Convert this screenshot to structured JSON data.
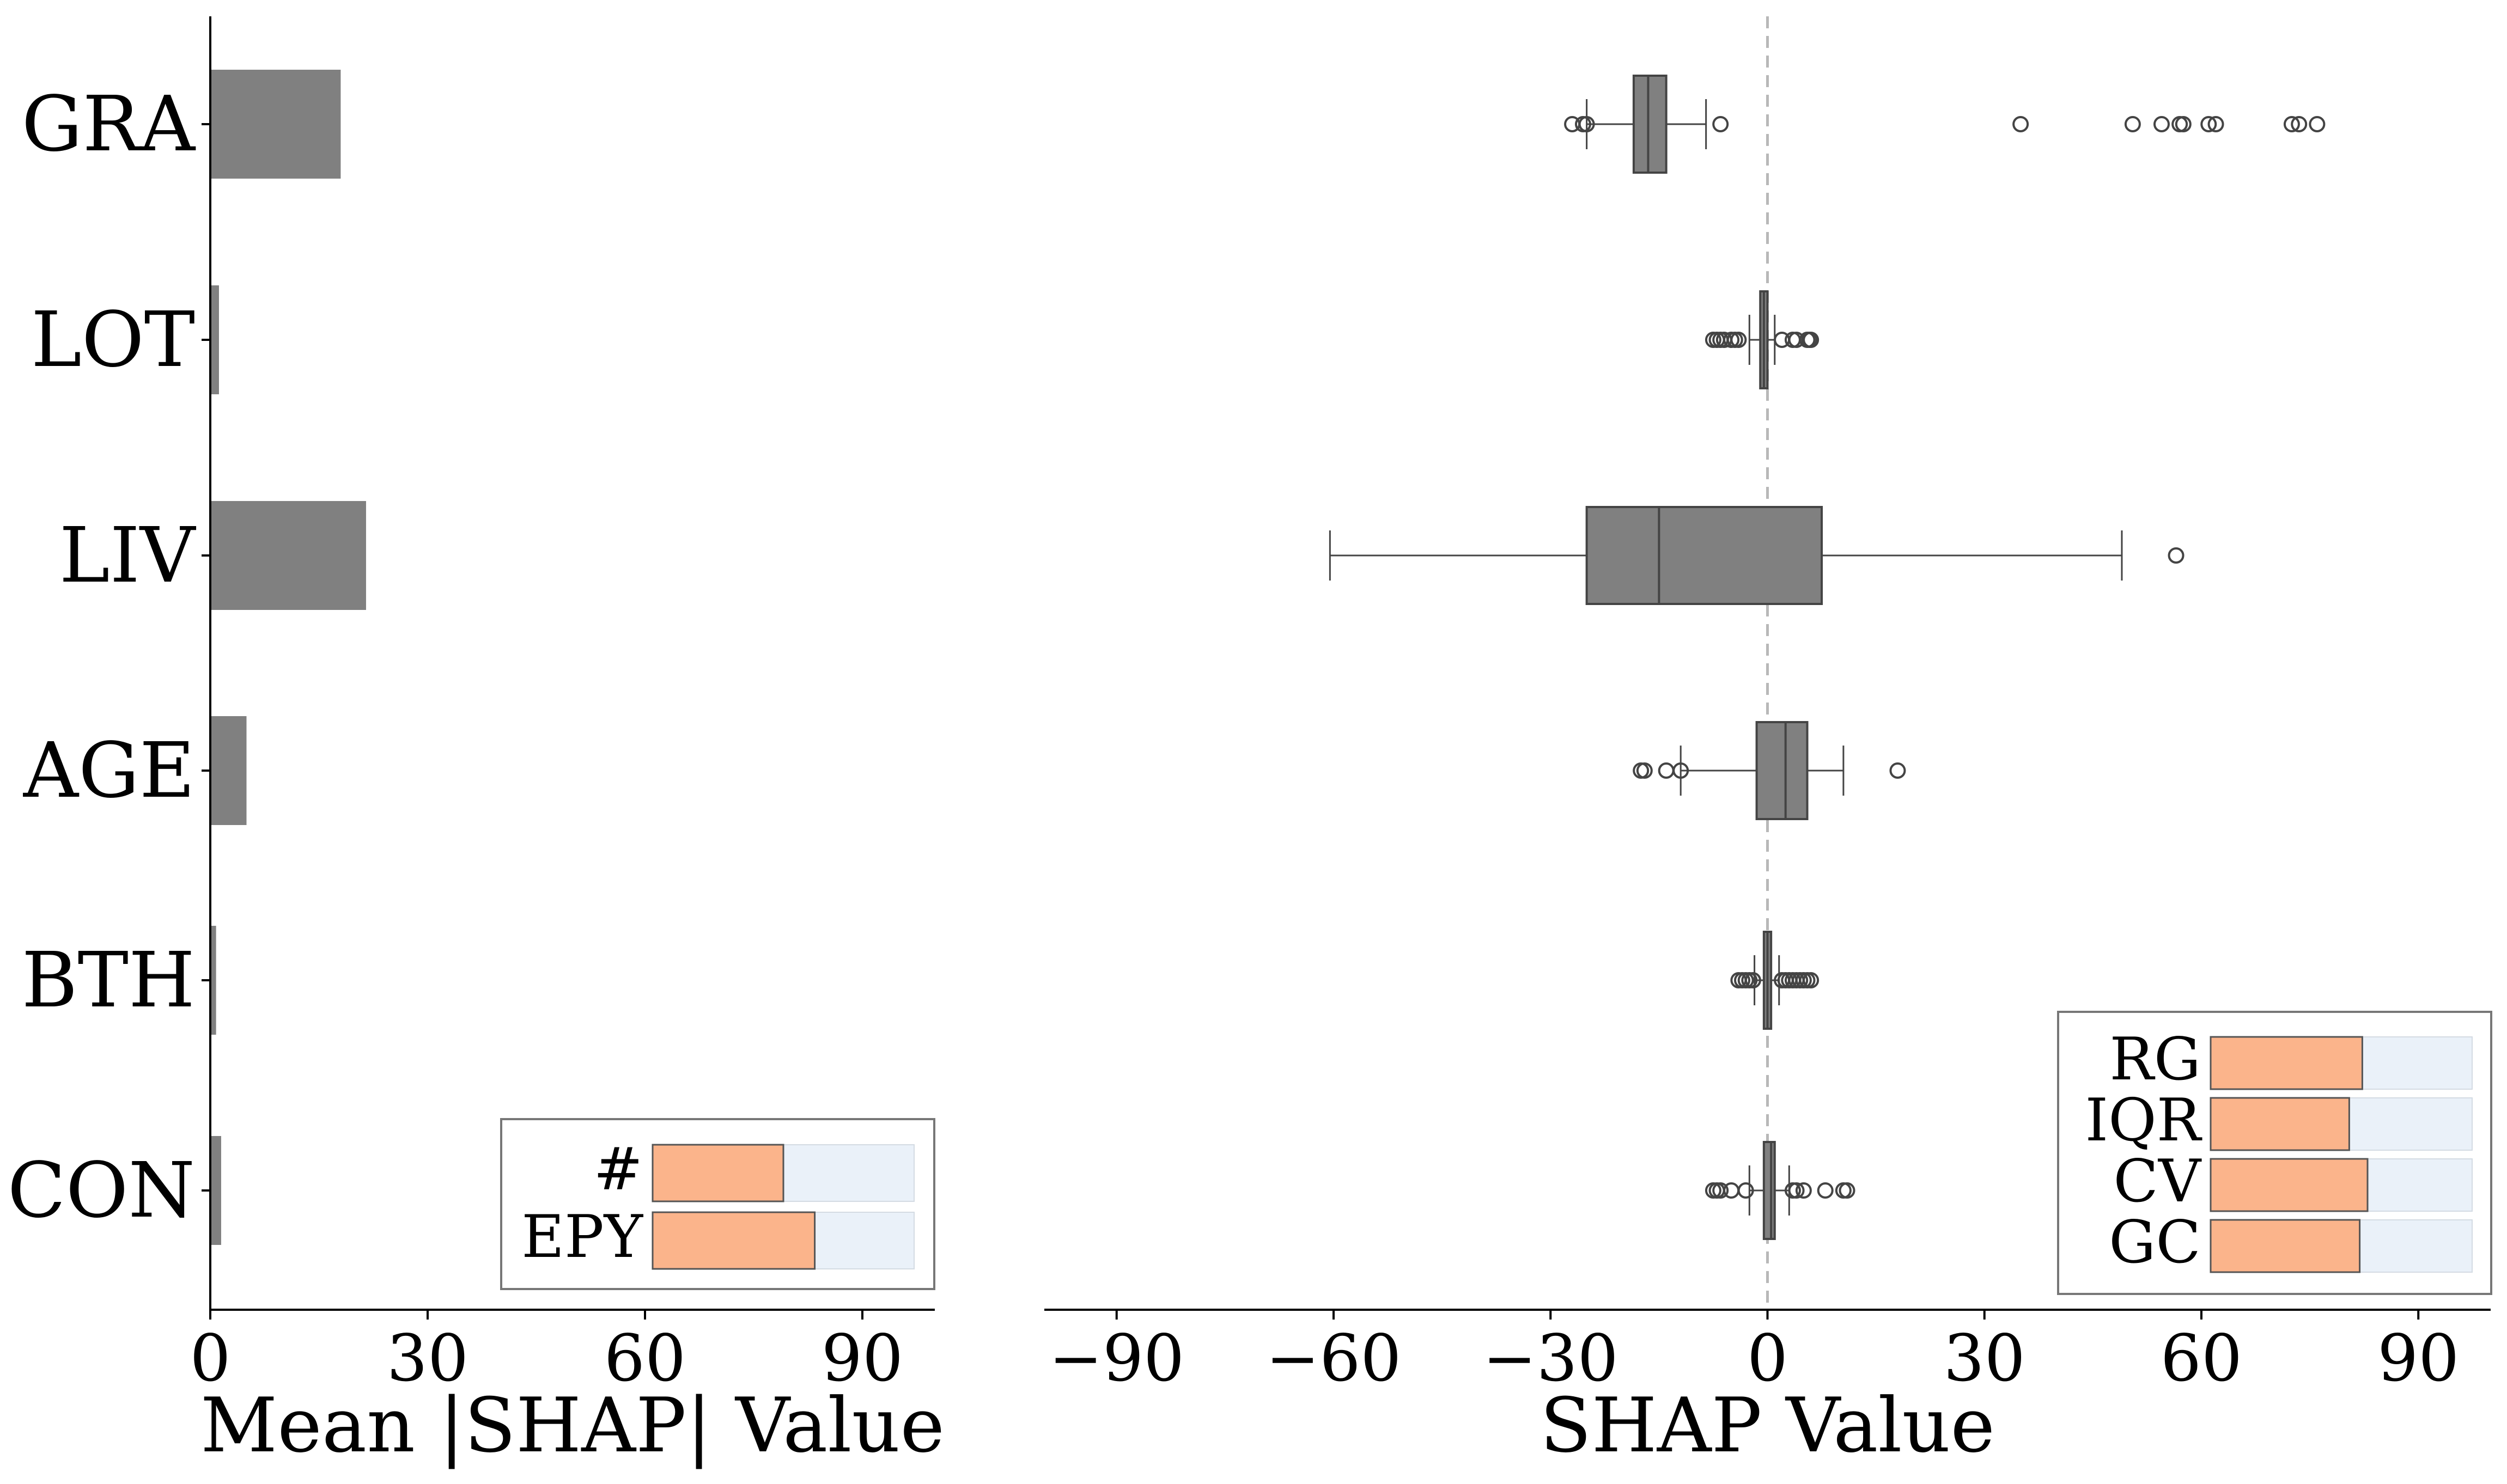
{
  "chart_data": [
    {
      "type": "bar",
      "orientation": "horizontal",
      "title": "",
      "xlabel": "Mean |SHAP| Value",
      "ylabel": "",
      "xlim": [
        0,
        100
      ],
      "xticks": [
        0,
        30,
        60,
        90
      ],
      "xtick_labels": [
        "0",
        "30",
        "60",
        "90"
      ],
      "categories": [
        "GRA",
        "LOT",
        "LIV",
        "AGE",
        "BTH",
        "CON"
      ],
      "values": [
        18,
        1.2,
        21.5,
        5,
        0.8,
        1.5
      ],
      "bar_color": "#808080",
      "legend": {
        "position": "bottom-right",
        "items": [
          {
            "label": "#",
            "value": 0.5
          },
          {
            "label": "EPY",
            "value": 0.62
          }
        ],
        "fill_color": "#fbb48b",
        "track_color": "#eaf1f9"
      }
    },
    {
      "type": "box",
      "orientation": "horizontal",
      "title": "",
      "xlabel": "SHAP Value",
      "ylabel": "",
      "xlim": [
        -100,
        100
      ],
      "xticks": [
        -90,
        -60,
        -30,
        0,
        30,
        60,
        90
      ],
      "xtick_labels": [
        "−90",
        "−60",
        "−30",
        "0",
        "30",
        "60",
        "90"
      ],
      "reference_line": 0,
      "categories": [
        "GRA",
        "LOT",
        "LIV",
        "AGE",
        "BTH",
        "CON"
      ],
      "boxes": [
        {
          "whisker_low": -25,
          "q1": -18.5,
          "median": -16.5,
          "q3": -14,
          "whisker_high": -8.5,
          "outliers": [
            -27,
            -25.5,
            -25,
            -6.5,
            35,
            50.5,
            54.5,
            57,
            57.5,
            61,
            62,
            72.5,
            73.5,
            76
          ]
        },
        {
          "whisker_low": -2.5,
          "q1": -1,
          "median": -0.5,
          "q3": 0,
          "whisker_high": 1,
          "outliers": [
            -7.5,
            -7,
            -6.5,
            -6,
            -5,
            -4.5,
            -4,
            2,
            3.5,
            4,
            5.5,
            5.8,
            6
          ]
        },
        {
          "whisker_low": -60.5,
          "q1": -25,
          "median": -15,
          "q3": 7.5,
          "whisker_high": 49,
          "outliers": [
            56.5
          ]
        },
        {
          "whisker_low": -12,
          "q1": -1.5,
          "median": 2.5,
          "q3": 5.5,
          "whisker_high": 10.5,
          "outliers": [
            -17.5,
            -17,
            -14,
            -12,
            18
          ]
        },
        {
          "whisker_low": -1.8,
          "q1": -0.5,
          "median": 0,
          "q3": 0.5,
          "whisker_high": 1.6,
          "outliers": [
            -4,
            -3.5,
            -3,
            -2.5,
            -2,
            2,
            2.5,
            3,
            3.5,
            4,
            4.5,
            5,
            5.5,
            6
          ]
        },
        {
          "whisker_low": -2.5,
          "q1": -0.5,
          "median": 0.5,
          "q3": 1,
          "whisker_high": 3,
          "outliers": [
            -7.5,
            -7,
            -6.5,
            -5,
            -3,
            3.5,
            4,
            5,
            8,
            10.5,
            11
          ]
        }
      ],
      "box_color": "#808080",
      "legend": {
        "position": "bottom-right",
        "items": [
          {
            "label": "RG",
            "value": 0.58
          },
          {
            "label": "IQR",
            "value": 0.53
          },
          {
            "label": "CV",
            "value": 0.6
          },
          {
            "label": "GC",
            "value": 0.57
          }
        ],
        "fill_color": "#fbb48b",
        "track_color": "#eaf1f9"
      }
    }
  ]
}
